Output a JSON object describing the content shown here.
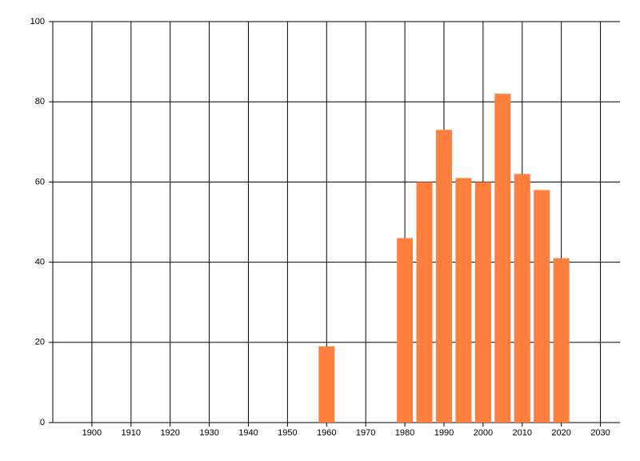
{
  "chart_data": {
    "type": "bar",
    "x": [
      1960,
      1980,
      1985,
      1990,
      1995,
      2000,
      2005,
      2010,
      2015,
      2020
    ],
    "values": [
      19,
      46,
      60,
      73,
      61,
      60,
      82,
      62,
      58,
      41
    ],
    "color": "#ff7f3f",
    "xlim": [
      1890,
      2035
    ],
    "xticks": [
      1900,
      1910,
      1920,
      1930,
      1940,
      1950,
      1960,
      1970,
      1980,
      1990,
      2000,
      2010,
      2020,
      2030
    ],
    "ylim": [
      0,
      100
    ],
    "yticks": [
      0,
      20,
      40,
      60,
      80,
      100
    ],
    "grid": true
  }
}
